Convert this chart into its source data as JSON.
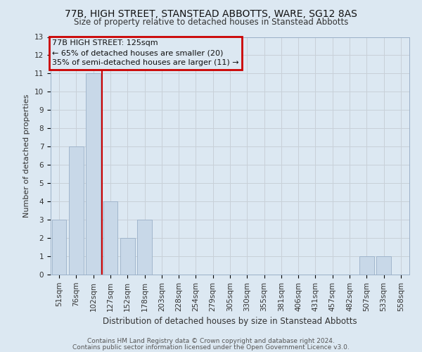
{
  "title": "77B, HIGH STREET, STANSTEAD ABBOTTS, WARE, SG12 8AS",
  "subtitle": "Size of property relative to detached houses in Stanstead Abbotts",
  "xlabel": "Distribution of detached houses by size in Stanstead Abbotts",
  "ylabel": "Number of detached properties",
  "footnote1": "Contains HM Land Registry data © Crown copyright and database right 2024.",
  "footnote2": "Contains public sector information licensed under the Open Government Licence v3.0.",
  "annotation_line1": "77B HIGH STREET: 125sqm",
  "annotation_line2": "← 65% of detached houses are smaller (20)",
  "annotation_line3": "35% of semi-detached houses are larger (11) →",
  "bar_labels": [
    "51sqm",
    "76sqm",
    "102sqm",
    "127sqm",
    "152sqm",
    "178sqm",
    "203sqm",
    "228sqm",
    "254sqm",
    "279sqm",
    "305sqm",
    "330sqm",
    "355sqm",
    "381sqm",
    "406sqm",
    "431sqm",
    "457sqm",
    "482sqm",
    "507sqm",
    "533sqm",
    "558sqm"
  ],
  "bar_values": [
    3,
    7,
    11,
    4,
    2,
    3,
    0,
    0,
    0,
    0,
    0,
    0,
    0,
    0,
    0,
    0,
    0,
    0,
    1,
    1,
    0
  ],
  "bar_color": "#c8d8e8",
  "bar_edge_color": "#9ab0c8",
  "subject_line_color": "#cc0000",
  "subject_line_index": 2.5,
  "ylim": [
    0,
    13
  ],
  "yticks": [
    0,
    1,
    2,
    3,
    4,
    5,
    6,
    7,
    8,
    9,
    10,
    11,
    12,
    13
  ],
  "annotation_box_edge_color": "#cc0000",
  "grid_color": "#c8d0d8",
  "plot_bg_color": "#dce8f2",
  "fig_bg_color": "#dce8f2",
  "title_fontsize": 10,
  "subtitle_fontsize": 8.5,
  "ylabel_fontsize": 8,
  "xlabel_fontsize": 8.5,
  "tick_fontsize": 7.5,
  "annotation_fontsize": 8,
  "footnote_fontsize": 6.5
}
